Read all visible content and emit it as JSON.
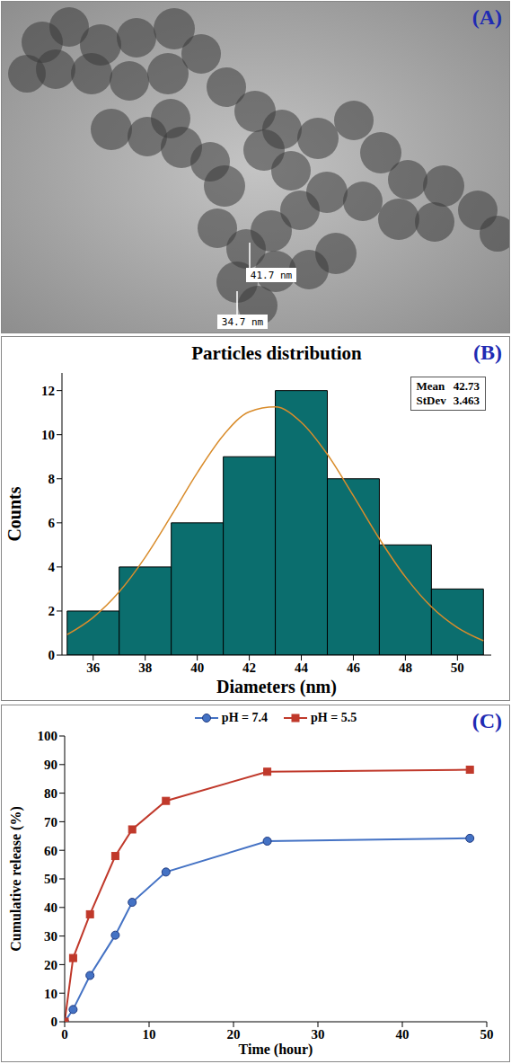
{
  "figure": {
    "panel_a": {
      "panel": "(A)",
      "type": "image",
      "measurements": [
        "41.7 nm",
        "34.7 nm"
      ]
    }
  },
  "chart_data": [
    {
      "panel": "(B)",
      "type": "histogram",
      "title": "Particles distribution",
      "x_label": "Diameters (nm)",
      "y_label": "Counts",
      "bins": [
        35,
        37,
        39,
        41,
        43,
        45,
        47,
        49,
        51
      ],
      "counts": [
        2,
        4,
        6,
        9,
        12,
        8,
        5,
        3
      ],
      "color": "#0b6e6e",
      "xlim": [
        34.8,
        51.3
      ],
      "xticks": [
        36,
        38,
        40,
        42,
        44,
        46,
        48,
        50
      ],
      "ylim": [
        0,
        12.8
      ],
      "yticks": [
        0,
        2,
        4,
        6,
        8,
        10,
        12
      ],
      "grid": false,
      "stats": [
        {
          "label": "Mean",
          "value": 42.73
        },
        {
          "label": "StDev",
          "value": 3.463
        }
      ],
      "curve": {
        "type": "line",
        "color": "#d98c2b",
        "x": [
          35,
          36,
          37,
          38,
          39,
          40,
          41,
          42,
          43,
          44,
          45,
          46,
          47,
          48,
          49,
          50,
          51
        ],
        "values": [
          0.93,
          1.71,
          2.87,
          4.44,
          6.32,
          8.27,
          9.97,
          11.04,
          11.26,
          10.56,
          9.11,
          7.23,
          5.28,
          3.55,
          2.19,
          1.25,
          0.65
        ]
      }
    },
    {
      "panel": "(C)",
      "type": "line",
      "x_label": "Time (hour)",
      "y_label": "Cumulative release (%)",
      "x": [
        0,
        1,
        3,
        6,
        8,
        12,
        24,
        48
      ],
      "series": [
        {
          "name": "pH = 7.4",
          "color": "#4472c4",
          "marker": "circle",
          "values": [
            0,
            4.3,
            16.2,
            30.3,
            41.8,
            52.4,
            63.2,
            64.2
          ]
        },
        {
          "name": "pH = 5.5",
          "color": "#c0392b",
          "marker": "square",
          "values": [
            0,
            22.3,
            37.6,
            58.0,
            67.3,
            77.3,
            87.5,
            88.2
          ]
        }
      ],
      "xlim": [
        0,
        50
      ],
      "xticks": [
        0,
        10,
        20,
        30,
        40,
        50
      ],
      "ylim": [
        0,
        100
      ],
      "yticks": [
        0,
        10,
        20,
        30,
        40,
        50,
        60,
        70,
        80,
        90,
        100
      ],
      "grid": false,
      "legend": "top"
    }
  ]
}
